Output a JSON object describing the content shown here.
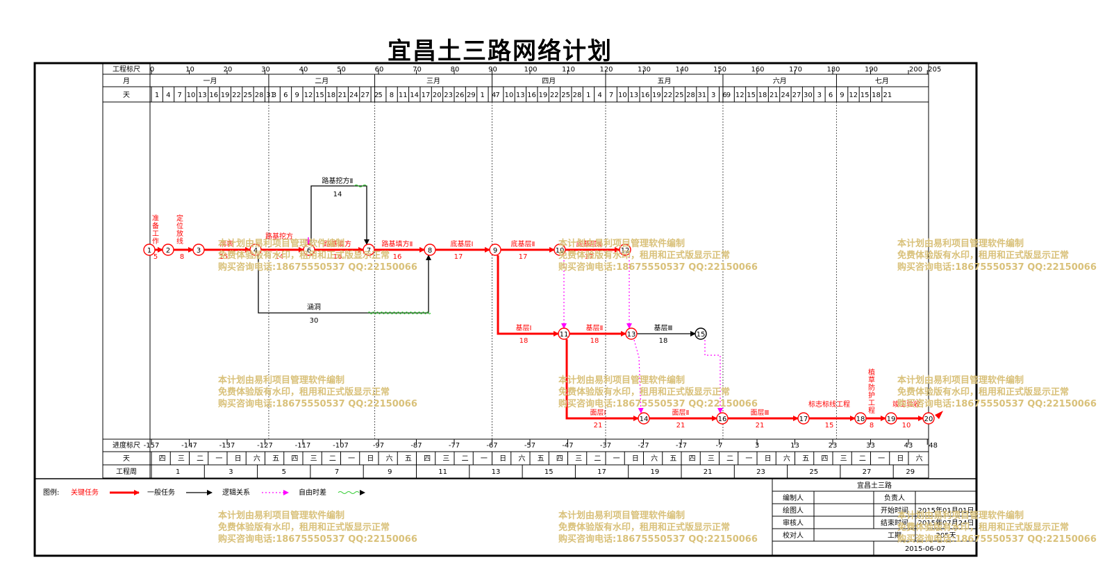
{
  "title": "宜昌土三路网络计划",
  "header": {
    "scale_label": "工程标尺",
    "month_label": "月",
    "day_label": "天",
    "scale_ticks": [
      "0",
      "10",
      "20",
      "30",
      "40",
      "50",
      "60",
      "70",
      "80",
      "90",
      "100",
      "110",
      "120",
      "130",
      "140",
      "150",
      "160",
      "170",
      "180",
      "190",
      "200",
      "205"
    ],
    "months": [
      "一月",
      "二月",
      "三月",
      "四月",
      "五月",
      "六月",
      "七月"
    ],
    "days": [
      "1",
      "4",
      "7",
      "10",
      "13",
      "16",
      "19",
      "22",
      "25",
      "28",
      "31",
      "3",
      "6",
      "9",
      "12",
      "15",
      "18",
      "21",
      "24",
      "27",
      "2",
      "5",
      "8",
      "11",
      "14",
      "17",
      "20",
      "23",
      "26",
      "29",
      "1",
      "4",
      "7",
      "10",
      "13",
      "16",
      "19",
      "22",
      "25",
      "28",
      "1",
      "4",
      "7",
      "10",
      "13",
      "16",
      "19",
      "22",
      "25",
      "28",
      "31",
      "3",
      "6",
      "9",
      "12",
      "15",
      "18",
      "21",
      "24",
      "27",
      "30",
      "3",
      "6",
      "9",
      "12",
      "15",
      "18",
      "21"
    ]
  },
  "footer": {
    "progress_label": "进度标尺",
    "day_label": "天",
    "week_label": "工程周",
    "progress_ticks": [
      "-157",
      "-147",
      "-137",
      "-127",
      "-117",
      "-107",
      "-97",
      "-87",
      "-77",
      "-67",
      "-57",
      "-47",
      "-37",
      "-27",
      "-17",
      "-7",
      "3",
      "13",
      "23",
      "33",
      "43",
      "48"
    ],
    "weekdays": [
      "四",
      "三",
      "二",
      "一",
      "日",
      "六",
      "五",
      "四",
      "三",
      "二",
      "一",
      "日",
      "六",
      "五",
      "四",
      "三",
      "二",
      "一",
      "日",
      "六",
      "五",
      "四",
      "三",
      "二",
      "一",
      "日",
      "六",
      "五",
      "四",
      "三",
      "二",
      "一",
      "日",
      "六",
      "五",
      "四",
      "三",
      "二",
      "一",
      "日",
      "六"
    ],
    "weeks": [
      "1",
      "3",
      "5",
      "7",
      "9",
      "11",
      "13",
      "15",
      "17",
      "19",
      "21",
      "23",
      "25",
      "27",
      "29"
    ]
  },
  "nodes": [
    "1",
    "2",
    "3",
    "4",
    "6",
    "7",
    "8",
    "9",
    "10",
    "12",
    "11",
    "13",
    "15",
    "14",
    "16",
    "17",
    "18",
    "19",
    "20"
  ],
  "tasks": [
    {
      "name": "准备工作",
      "dur": "5"
    },
    {
      "name": "定位放线",
      "dur": "8"
    },
    {
      "name": "清表",
      "dur": "15"
    },
    {
      "name": "路基挖方",
      "dur": "14"
    },
    {
      "name": "路基填方",
      "dur": "16"
    },
    {
      "name": "路基填方Ⅱ",
      "dur": "16"
    },
    {
      "name": "路基挖方Ⅱ",
      "dur": "14"
    },
    {
      "name": "涵洞",
      "dur": "30"
    },
    {
      "name": "底基层Ⅰ",
      "dur": "17"
    },
    {
      "name": "底基层Ⅱ",
      "dur": "17"
    },
    {
      "name": "底基层Ⅲ",
      "dur": "17"
    },
    {
      "name": "基层Ⅰ",
      "dur": "18"
    },
    {
      "name": "基层Ⅱ",
      "dur": "18"
    },
    {
      "name": "基层Ⅲ",
      "dur": "18"
    },
    {
      "name": "面层Ⅰ",
      "dur": "21"
    },
    {
      "name": "面层Ⅱ",
      "dur": "21"
    },
    {
      "name": "面层Ⅲ",
      "dur": "21"
    },
    {
      "name": "标志标线工程",
      "dur": "15"
    },
    {
      "name": "植草防护工程",
      "dur": "8"
    },
    {
      "name": "竣工验收",
      "dur": "10"
    }
  ],
  "legend": {
    "label": "图例:",
    "critical": "关键任务",
    "normal": "一般任务",
    "logic": "逻辑关系",
    "float": "自由时差"
  },
  "info": {
    "project": "宜昌土三路",
    "editor": "编制人",
    "owner": "负责人",
    "drawer": "绘图人",
    "start_label": "开始时间",
    "start": "2015年01月01日",
    "reviewer": "审核人",
    "end_label": "结束时间",
    "end": "2015年07月24日",
    "checker": "校对人",
    "duration_label": "工期",
    "duration": "205天",
    "date": "2015-06-07"
  },
  "watermark": {
    "line1": "本计划由易利项目管理软件编制",
    "line2": "免费体验版有水印，租用和正式版显示正常",
    "line3": "购买咨询电话:18675550537 QQ:22150066"
  },
  "colors": {
    "critical": "#ff0000",
    "normal": "#000000",
    "logic": "#ff00ff",
    "float": "#33cc33",
    "watermark": "#d9c17a"
  }
}
